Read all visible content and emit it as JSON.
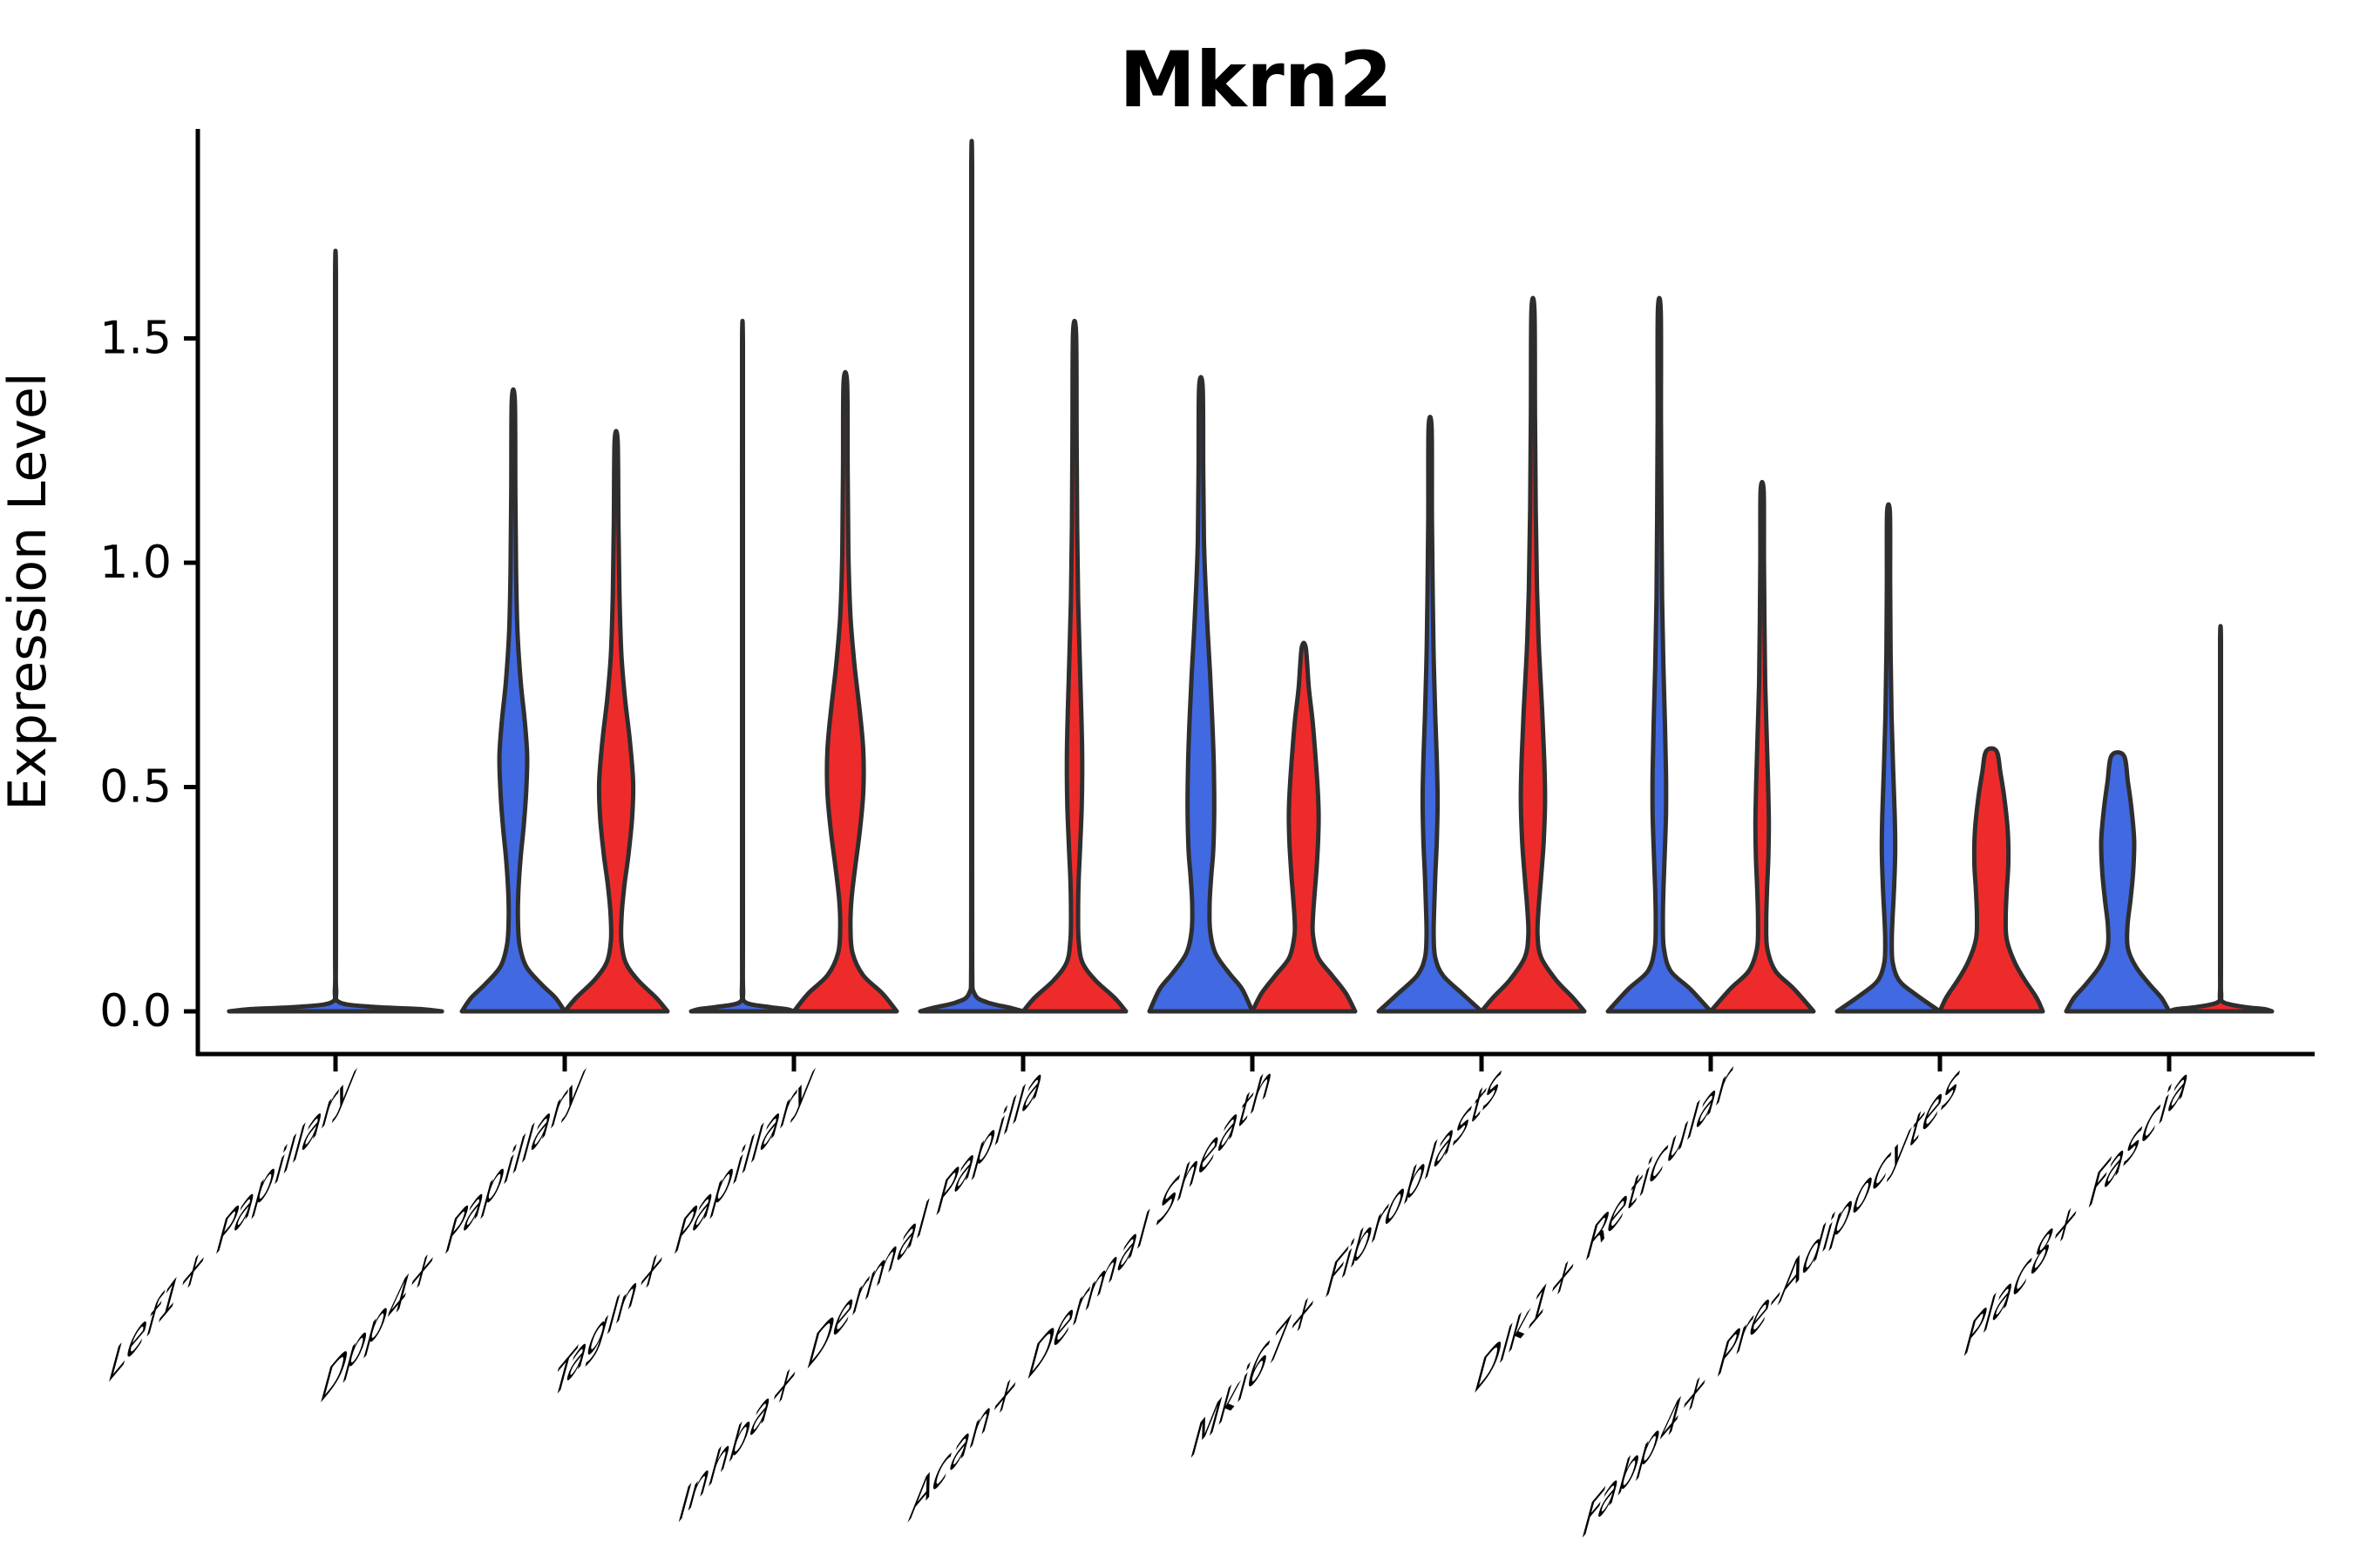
{
  "title": "Mkrn2",
  "axis": {
    "y_label": "Expression Level",
    "y_tick_labels": [
      "0.0",
      "0.5",
      "1.0",
      "1.5"
    ]
  },
  "colors": {
    "group_blue": "#4169E1",
    "group_red": "#EE2B2B",
    "violin_outline": "#2E2E2E",
    "axis_color": "#000000",
    "background": "#FFFFFF"
  },
  "chart_data": {
    "type": "violin",
    "title": "Mkrn2",
    "xlabel": "",
    "ylabel": "Expression Level",
    "yticks": [
      0.0,
      0.5,
      1.0,
      1.5
    ],
    "ylim": [
      0,
      1.95
    ],
    "grid": false,
    "legend": "none",
    "categories": [
      "Lef1+ Papillary",
      "Dpp4+ Papillary",
      "Tagln+ Papillary",
      "Inhba+ Dermal Papilla",
      "Acan+ Dermal Sheath",
      "Mki67+ Fibroblasts",
      "Dlk1+ Reticular",
      "Fabp4+ Pre-Adipocytes",
      "Plac8+ Fascia"
    ],
    "groups": [
      {
        "id": "blue",
        "color": "#4169E1"
      },
      {
        "id": "red",
        "color": "#EE2B2B"
      }
    ],
    "max_expression": {
      "Lef1+ Papillary": {
        "single": 1.64
      },
      "Dpp4+ Papillary": {
        "blue": 1.36,
        "red": 1.27
      },
      "Tagln+ Papillary": {
        "blue": 1.49,
        "red": 1.4
      },
      "Inhba+ Dermal Papilla": {
        "blue": 1.88,
        "red": 1.51
      },
      "Acan+ Dermal Sheath": {
        "blue": 1.39,
        "red": 0.81
      },
      "Mki67+ Fibroblasts": {
        "blue": 1.3,
        "red": 1.56
      },
      "Dlk1+ Reticular": {
        "blue": 1.56,
        "red": 1.16
      },
      "Fabp4+ Pre-Adipocytes": {
        "blue": 1.11,
        "red": 0.58
      },
      "Plac8+ Fascia": {
        "blue": 0.57,
        "red": 0.83
      }
    },
    "violins": [
      {
        "cat": 0,
        "group": "blue",
        "side": "center",
        "width_scale": 2.07,
        "max": 1.64,
        "profile": [
          [
            1.64,
            0.004
          ],
          [
            1.2,
            0.004
          ],
          [
            0.6,
            0.004
          ],
          [
            0.15,
            0.004
          ],
          [
            0.05,
            0.006
          ],
          [
            0.02,
            0.04
          ],
          [
            0.01,
            0.35
          ],
          [
            0.005,
            0.8
          ],
          [
            0,
            1.0
          ]
        ]
      },
      {
        "cat": 1,
        "group": "blue",
        "side": "left",
        "width_scale": 1,
        "max": 1.36,
        "profile": [
          [
            1.36,
            0.03
          ],
          [
            1.15,
            0.04
          ],
          [
            0.98,
            0.055
          ],
          [
            0.85,
            0.08
          ],
          [
            0.74,
            0.14
          ],
          [
            0.65,
            0.22
          ],
          [
            0.57,
            0.27
          ],
          [
            0.49,
            0.25
          ],
          [
            0.41,
            0.2
          ],
          [
            0.34,
            0.14
          ],
          [
            0.27,
            0.1
          ],
          [
            0.21,
            0.09
          ],
          [
            0.15,
            0.12
          ],
          [
            0.1,
            0.25
          ],
          [
            0.06,
            0.55
          ],
          [
            0.03,
            0.82
          ],
          [
            0,
            1.0
          ]
        ]
      },
      {
        "cat": 1,
        "group": "red",
        "side": "right",
        "width_scale": 1,
        "max": 1.27,
        "profile": [
          [
            1.27,
            0.03
          ],
          [
            1.08,
            0.045
          ],
          [
            0.93,
            0.065
          ],
          [
            0.8,
            0.1
          ],
          [
            0.7,
            0.17
          ],
          [
            0.6,
            0.27
          ],
          [
            0.51,
            0.33
          ],
          [
            0.43,
            0.31
          ],
          [
            0.35,
            0.24
          ],
          [
            0.28,
            0.16
          ],
          [
            0.22,
            0.11
          ],
          [
            0.16,
            0.1
          ],
          [
            0.11,
            0.18
          ],
          [
            0.07,
            0.42
          ],
          [
            0.03,
            0.78
          ],
          [
            0,
            1.0
          ]
        ]
      },
      {
        "cat": 2,
        "group": "blue",
        "side": "left",
        "width_scale": 1,
        "max": 1.49,
        "profile": [
          [
            1.49,
            0.008
          ],
          [
            1.1,
            0.008
          ],
          [
            0.6,
            0.008
          ],
          [
            0.15,
            0.008
          ],
          [
            0.05,
            0.012
          ],
          [
            0.02,
            0.06
          ],
          [
            0.01,
            0.5
          ],
          [
            0.005,
            0.85
          ],
          [
            0,
            1.0
          ]
        ]
      },
      {
        "cat": 2,
        "group": "red",
        "side": "right",
        "width_scale": 1,
        "max": 1.4,
        "profile": [
          [
            1.4,
            0.035
          ],
          [
            1.2,
            0.045
          ],
          [
            1.02,
            0.06
          ],
          [
            0.88,
            0.1
          ],
          [
            0.77,
            0.18
          ],
          [
            0.67,
            0.28
          ],
          [
            0.58,
            0.35
          ],
          [
            0.49,
            0.35
          ],
          [
            0.4,
            0.28
          ],
          [
            0.32,
            0.19
          ],
          [
            0.25,
            0.12
          ],
          [
            0.19,
            0.1
          ],
          [
            0.13,
            0.14
          ],
          [
            0.08,
            0.35
          ],
          [
            0.04,
            0.72
          ],
          [
            0,
            1.0
          ]
        ]
      },
      {
        "cat": 3,
        "group": "blue",
        "side": "left",
        "width_scale": 1,
        "max": 1.88,
        "profile": [
          [
            1.88,
            0.008
          ],
          [
            1.4,
            0.008
          ],
          [
            0.9,
            0.008
          ],
          [
            0.4,
            0.008
          ],
          [
            0.1,
            0.01
          ],
          [
            0.04,
            0.05
          ],
          [
            0.02,
            0.3
          ],
          [
            0.008,
            0.75
          ],
          [
            0,
            1.0
          ]
        ]
      },
      {
        "cat": 3,
        "group": "red",
        "side": "right",
        "width_scale": 1,
        "max": 1.51,
        "profile": [
          [
            1.51,
            0.03
          ],
          [
            1.28,
            0.04
          ],
          [
            1.08,
            0.05
          ],
          [
            0.92,
            0.07
          ],
          [
            0.79,
            0.1
          ],
          [
            0.67,
            0.13
          ],
          [
            0.56,
            0.15
          ],
          [
            0.46,
            0.14
          ],
          [
            0.37,
            0.11
          ],
          [
            0.29,
            0.08
          ],
          [
            0.22,
            0.07
          ],
          [
            0.16,
            0.08
          ],
          [
            0.11,
            0.15
          ],
          [
            0.07,
            0.4
          ],
          [
            0.03,
            0.78
          ],
          [
            0,
            1.0
          ]
        ]
      },
      {
        "cat": 4,
        "group": "blue",
        "side": "left",
        "width_scale": 1,
        "max": 1.39,
        "profile": [
          [
            1.39,
            0.035
          ],
          [
            1.2,
            0.045
          ],
          [
            1.05,
            0.06
          ],
          [
            0.95,
            0.09
          ],
          [
            0.85,
            0.13
          ],
          [
            0.75,
            0.18
          ],
          [
            0.65,
            0.22
          ],
          [
            0.55,
            0.25
          ],
          [
            0.45,
            0.26
          ],
          [
            0.36,
            0.24
          ],
          [
            0.3,
            0.2
          ],
          [
            0.24,
            0.17
          ],
          [
            0.18,
            0.18
          ],
          [
            0.13,
            0.28
          ],
          [
            0.085,
            0.55
          ],
          [
            0.05,
            0.8
          ],
          [
            0,
            1.0
          ]
        ]
      },
      {
        "cat": 4,
        "group": "red",
        "side": "right",
        "width_scale": 1,
        "max": 0.81,
        "profile": [
          [
            0.81,
            0.04
          ],
          [
            0.72,
            0.1
          ],
          [
            0.65,
            0.17
          ],
          [
            0.58,
            0.22
          ],
          [
            0.5,
            0.27
          ],
          [
            0.44,
            0.29
          ],
          [
            0.38,
            0.28
          ],
          [
            0.32,
            0.25
          ],
          [
            0.26,
            0.21
          ],
          [
            0.21,
            0.18
          ],
          [
            0.17,
            0.18
          ],
          [
            0.12,
            0.28
          ],
          [
            0.08,
            0.55
          ],
          [
            0.04,
            0.82
          ],
          [
            0,
            1.0
          ]
        ]
      },
      {
        "cat": 5,
        "group": "blue",
        "side": "left",
        "width_scale": 1,
        "max": 1.3,
        "profile": [
          [
            1.3,
            0.03
          ],
          [
            1.1,
            0.035
          ],
          [
            0.93,
            0.05
          ],
          [
            0.79,
            0.07
          ],
          [
            0.66,
            0.1
          ],
          [
            0.56,
            0.13
          ],
          [
            0.47,
            0.145
          ],
          [
            0.38,
            0.13
          ],
          [
            0.3,
            0.1
          ],
          [
            0.23,
            0.08
          ],
          [
            0.17,
            0.07
          ],
          [
            0.12,
            0.1
          ],
          [
            0.08,
            0.25
          ],
          [
            0.04,
            0.62
          ],
          [
            0,
            1.0
          ]
        ]
      },
      {
        "cat": 5,
        "group": "red",
        "side": "right",
        "width_scale": 1,
        "max": 1.56,
        "profile": [
          [
            1.56,
            0.03
          ],
          [
            1.32,
            0.04
          ],
          [
            1.12,
            0.055
          ],
          [
            0.94,
            0.08
          ],
          [
            0.8,
            0.12
          ],
          [
            0.67,
            0.18
          ],
          [
            0.56,
            0.22
          ],
          [
            0.47,
            0.235
          ],
          [
            0.38,
            0.21
          ],
          [
            0.3,
            0.16
          ],
          [
            0.23,
            0.11
          ],
          [
            0.17,
            0.09
          ],
          [
            0.12,
            0.16
          ],
          [
            0.07,
            0.45
          ],
          [
            0.03,
            0.78
          ],
          [
            0,
            1.0
          ]
        ]
      },
      {
        "cat": 6,
        "group": "blue",
        "side": "left",
        "width_scale": 1,
        "max": 1.56,
        "profile": [
          [
            1.56,
            0.028
          ],
          [
            1.32,
            0.033
          ],
          [
            1.1,
            0.042
          ],
          [
            0.92,
            0.055
          ],
          [
            0.77,
            0.08
          ],
          [
            0.64,
            0.11
          ],
          [
            0.53,
            0.13
          ],
          [
            0.44,
            0.13
          ],
          [
            0.35,
            0.105
          ],
          [
            0.27,
            0.08
          ],
          [
            0.2,
            0.07
          ],
          [
            0.14,
            0.09
          ],
          [
            0.09,
            0.22
          ],
          [
            0.05,
            0.6
          ],
          [
            0,
            1.0
          ]
        ]
      },
      {
        "cat": 6,
        "group": "red",
        "side": "right",
        "width_scale": 1,
        "max": 1.16,
        "profile": [
          [
            1.16,
            0.03
          ],
          [
            1.0,
            0.035
          ],
          [
            0.86,
            0.045
          ],
          [
            0.73,
            0.06
          ],
          [
            0.61,
            0.09
          ],
          [
            0.51,
            0.115
          ],
          [
            0.42,
            0.13
          ],
          [
            0.34,
            0.12
          ],
          [
            0.27,
            0.095
          ],
          [
            0.2,
            0.08
          ],
          [
            0.14,
            0.1
          ],
          [
            0.09,
            0.26
          ],
          [
            0.05,
            0.62
          ],
          [
            0,
            1.0
          ]
        ]
      },
      {
        "cat": 7,
        "group": "blue",
        "side": "left",
        "width_scale": 1,
        "max": 1.11,
        "profile": [
          [
            1.11,
            0.028
          ],
          [
            0.95,
            0.032
          ],
          [
            0.8,
            0.04
          ],
          [
            0.66,
            0.06
          ],
          [
            0.54,
            0.09
          ],
          [
            0.44,
            0.12
          ],
          [
            0.36,
            0.13
          ],
          [
            0.28,
            0.11
          ],
          [
            0.21,
            0.08
          ],
          [
            0.16,
            0.065
          ],
          [
            0.11,
            0.08
          ],
          [
            0.07,
            0.2
          ],
          [
            0.04,
            0.5
          ],
          [
            0,
            1.0
          ]
        ]
      },
      {
        "cat": 7,
        "group": "red",
        "side": "right",
        "width_scale": 1,
        "max": 0.58,
        "profile": [
          [
            0.58,
            0.1
          ],
          [
            0.53,
            0.18
          ],
          [
            0.47,
            0.26
          ],
          [
            0.4,
            0.32
          ],
          [
            0.33,
            0.33
          ],
          [
            0.27,
            0.3
          ],
          [
            0.21,
            0.28
          ],
          [
            0.16,
            0.3
          ],
          [
            0.11,
            0.45
          ],
          [
            0.07,
            0.65
          ],
          [
            0.03,
            0.88
          ],
          [
            0,
            1.0
          ]
        ]
      },
      {
        "cat": 8,
        "group": "blue",
        "side": "left",
        "width_scale": 1,
        "max": 0.57,
        "profile": [
          [
            0.57,
            0.12
          ],
          [
            0.51,
            0.2
          ],
          [
            0.45,
            0.27
          ],
          [
            0.38,
            0.32
          ],
          [
            0.31,
            0.3
          ],
          [
            0.25,
            0.25
          ],
          [
            0.19,
            0.19
          ],
          [
            0.14,
            0.2
          ],
          [
            0.1,
            0.35
          ],
          [
            0.06,
            0.62
          ],
          [
            0.03,
            0.85
          ],
          [
            0,
            1.0
          ]
        ]
      },
      {
        "cat": 8,
        "group": "red",
        "side": "right",
        "width_scale": 1,
        "max": 0.83,
        "profile": [
          [
            0.83,
            0.008
          ],
          [
            0.6,
            0.008
          ],
          [
            0.3,
            0.008
          ],
          [
            0.1,
            0.008
          ],
          [
            0.04,
            0.012
          ],
          [
            0.02,
            0.06
          ],
          [
            0.01,
            0.45
          ],
          [
            0.005,
            0.85
          ],
          [
            0,
            1.0
          ]
        ]
      }
    ]
  }
}
